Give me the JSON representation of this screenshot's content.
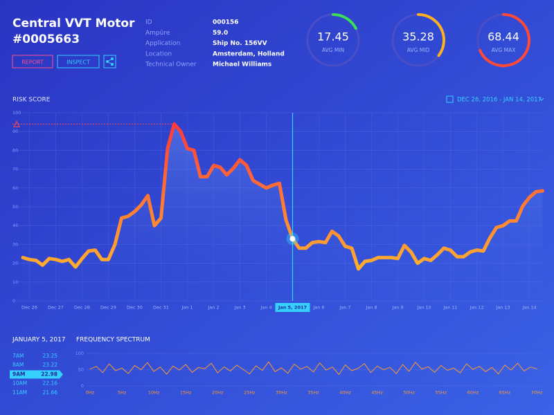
{
  "header": {
    "title": "Central VVT Motor",
    "code": "#0005663",
    "buttons": [
      "REPORT",
      "INSPECT"
    ]
  },
  "info": [
    [
      "ID",
      "000156"
    ],
    [
      "Ampûre",
      "59.0"
    ],
    [
      "Application",
      "Ship No. 156VV"
    ],
    [
      "Location",
      "Amsterdam, Holland"
    ],
    [
      "Technical Owner",
      "Michael Williams"
    ]
  ],
  "gauges": [
    {
      "value": 17.45,
      "label": "AVG MIN",
      "color": "#3ddc5a"
    },
    {
      "value": 35.28,
      "label": "AVG MID",
      "color": "#ffb020"
    },
    {
      "value": 68.44,
      "label": "AVG MAX",
      "color": "#ff4a3a"
    }
  ],
  "date_range": "DEC 26, 2016 - JAN 14, 2017",
  "hourly": {
    "title": "JANUARY 5, 2017",
    "rows": [
      [
        "7AM",
        23.25
      ],
      [
        "8AM",
        23.22
      ],
      [
        "9AM",
        22.98
      ],
      [
        "10AM",
        22.16
      ],
      [
        "11AM",
        21.66
      ]
    ],
    "selected": 2
  },
  "chart_data": [
    {
      "type": "line",
      "title": "RISK SCORE",
      "categories": [
        null,
        "Dec 26",
        null,
        null,
        null,
        "Dec 27",
        null,
        null,
        null,
        "Dec 28",
        null,
        null,
        null,
        "Dec 29",
        null,
        null,
        null,
        "Dec 30",
        null,
        null,
        null,
        "Dec 31",
        null,
        null,
        null,
        "Jan 1",
        null,
        null,
        null,
        "Jan 2",
        null,
        null,
        null,
        "Jan 3",
        null,
        null,
        null,
        "Jan 4",
        null,
        null,
        null,
        "Jan 5, 2017",
        null,
        null,
        null,
        "Jan 6",
        null,
        null,
        null,
        "Jan 7",
        null,
        null,
        null,
        "Jan 8",
        null,
        null,
        null,
        "Jan 9",
        null,
        null,
        null,
        "Jan 10",
        null,
        null,
        null,
        "Jan 11",
        null,
        null,
        null,
        "Jan 12",
        null,
        null,
        null,
        "Jan 13",
        null,
        null,
        null,
        "Jan 14",
        null,
        null
      ],
      "values": [
        23,
        22,
        21.5,
        19,
        22.5,
        22,
        21,
        22,
        18,
        22.5,
        26.5,
        27,
        22,
        22,
        30,
        44,
        45,
        47.5,
        51,
        56,
        40,
        44,
        81,
        94,
        90,
        81,
        80,
        66,
        66,
        72,
        71,
        67,
        70.5,
        75,
        72,
        64,
        62,
        60,
        61.5,
        62.5,
        43,
        33,
        28,
        28,
        31,
        31.5,
        31,
        37,
        34.5,
        29,
        28,
        17,
        21,
        21.5,
        23,
        23,
        23,
        22.5,
        29.5,
        26,
        20,
        22.5,
        21.5,
        24.5,
        28,
        27,
        23.5,
        23.5,
        26,
        27,
        26.5,
        33.5,
        39,
        40,
        42.5,
        42.5,
        50.5,
        55,
        58,
        58.5
      ],
      "ylim": [
        0,
        100
      ],
      "yticks": [
        0,
        10,
        20,
        30,
        40,
        50,
        60,
        70,
        80,
        90,
        100
      ],
      "grid": true,
      "threshold": 94,
      "highlight": 41,
      "color": "#ff8c2a"
    },
    {
      "type": "line",
      "title": "FREQUENCY SPECTRUM",
      "categories": [
        "0Hz",
        null,
        null,
        null,
        null,
        "5Hz",
        null,
        null,
        null,
        null,
        "10Hz",
        null,
        null,
        null,
        null,
        "15Hz",
        null,
        null,
        null,
        null,
        "20Hz",
        null,
        null,
        null,
        null,
        "25Hz",
        null,
        null,
        null,
        null,
        "30Hz",
        null,
        null,
        null,
        null,
        "35Hz",
        null,
        null,
        null,
        null,
        "40Hz",
        null,
        null,
        null,
        null,
        "45Hz",
        null,
        null,
        null,
        null,
        "50Hz",
        null,
        null,
        null,
        null,
        "55Hz",
        null,
        null,
        null,
        null,
        "60Hz",
        null,
        null,
        null,
        null,
        "65Hz",
        null,
        null,
        null,
        null,
        "70Hz"
      ],
      "values": [
        52,
        60,
        41,
        68,
        47,
        55,
        38,
        63,
        50,
        72,
        45,
        58,
        36,
        61,
        49,
        66,
        42,
        57,
        53,
        70,
        40,
        59,
        46,
        64,
        51,
        37,
        62,
        48,
        74,
        44,
        56,
        39,
        67,
        52,
        60,
        43,
        71,
        49,
        58,
        35,
        65,
        47,
        54,
        69,
        41,
        61,
        50,
        57,
        38,
        66,
        45,
        73,
        52,
        59,
        42,
        63,
        48,
        55,
        40,
        68,
        51,
        60,
        44,
        57,
        37,
        64,
        49,
        70,
        46,
        58,
        53
      ],
      "ylim": [
        0,
        100
      ],
      "yticks": [
        0,
        50,
        100
      ],
      "grid": true,
      "color": "#ff9a2e"
    }
  ]
}
